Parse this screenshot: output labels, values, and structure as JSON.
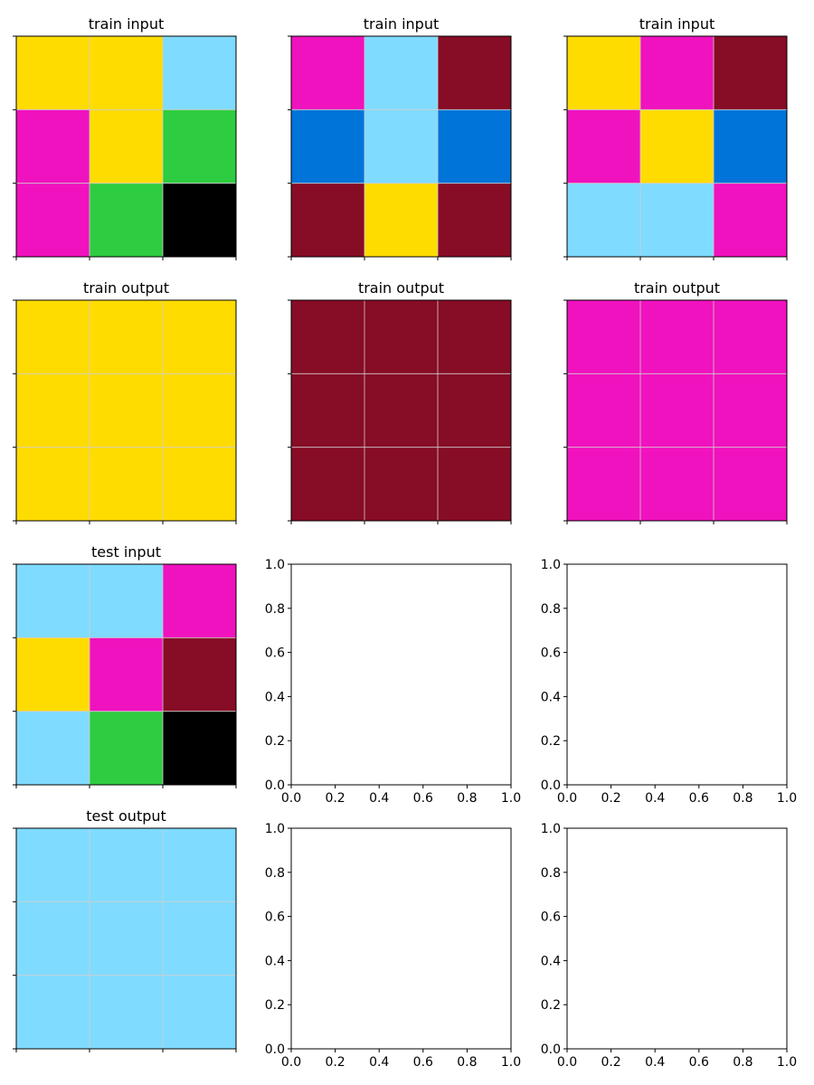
{
  "colors": {
    "yellow": "#FFDC00",
    "cyan": "#7FDBFF",
    "magenta": "#F012BE",
    "green": "#2ECC40",
    "black": "#000000",
    "maroon": "#870C25",
    "blue": "#0074D9"
  },
  "panels": [
    {
      "id": "p00",
      "title": "train input",
      "grid": [
        [
          "yellow",
          "yellow",
          "cyan"
        ],
        [
          "magenta",
          "yellow",
          "green"
        ],
        [
          "magenta",
          "green",
          "black"
        ]
      ]
    },
    {
      "id": "p01",
      "title": "train input",
      "grid": [
        [
          "magenta",
          "cyan",
          "maroon"
        ],
        [
          "blue",
          "cyan",
          "blue"
        ],
        [
          "maroon",
          "yellow",
          "maroon"
        ]
      ]
    },
    {
      "id": "p02",
      "title": "train input",
      "grid": [
        [
          "yellow",
          "magenta",
          "maroon"
        ],
        [
          "magenta",
          "yellow",
          "blue"
        ],
        [
          "cyan",
          "cyan",
          "magenta"
        ]
      ]
    },
    {
      "id": "p10",
      "title": "train output",
      "grid": [
        [
          "yellow",
          "yellow",
          "yellow"
        ],
        [
          "yellow",
          "yellow",
          "yellow"
        ],
        [
          "yellow",
          "yellow",
          "yellow"
        ]
      ]
    },
    {
      "id": "p11",
      "title": "train output",
      "grid": [
        [
          "maroon",
          "maroon",
          "maroon"
        ],
        [
          "maroon",
          "maroon",
          "maroon"
        ],
        [
          "maroon",
          "maroon",
          "maroon"
        ]
      ]
    },
    {
      "id": "p12",
      "title": "train output",
      "grid": [
        [
          "magenta",
          "magenta",
          "magenta"
        ],
        [
          "magenta",
          "magenta",
          "magenta"
        ],
        [
          "magenta",
          "magenta",
          "magenta"
        ]
      ]
    },
    {
      "id": "p20",
      "title": "test input",
      "grid": [
        [
          "cyan",
          "cyan",
          "magenta"
        ],
        [
          "yellow",
          "magenta",
          "maroon"
        ],
        [
          "cyan",
          "green",
          "black"
        ]
      ]
    },
    {
      "id": "p21",
      "title": "",
      "empty": true
    },
    {
      "id": "p22",
      "title": "",
      "empty": true
    },
    {
      "id": "p30",
      "title": "test output",
      "grid": [
        [
          "cyan",
          "cyan",
          "cyan"
        ],
        [
          "cyan",
          "cyan",
          "cyan"
        ],
        [
          "cyan",
          "cyan",
          "cyan"
        ]
      ]
    },
    {
      "id": "p31",
      "title": "",
      "empty": true
    },
    {
      "id": "p32",
      "title": "",
      "empty": true
    }
  ],
  "empty_axis": {
    "xticks": [
      "0.0",
      "0.2",
      "0.4",
      "0.6",
      "0.8",
      "1.0"
    ],
    "yticks": [
      "0.0",
      "0.2",
      "0.4",
      "0.6",
      "0.8",
      "1.0"
    ]
  }
}
